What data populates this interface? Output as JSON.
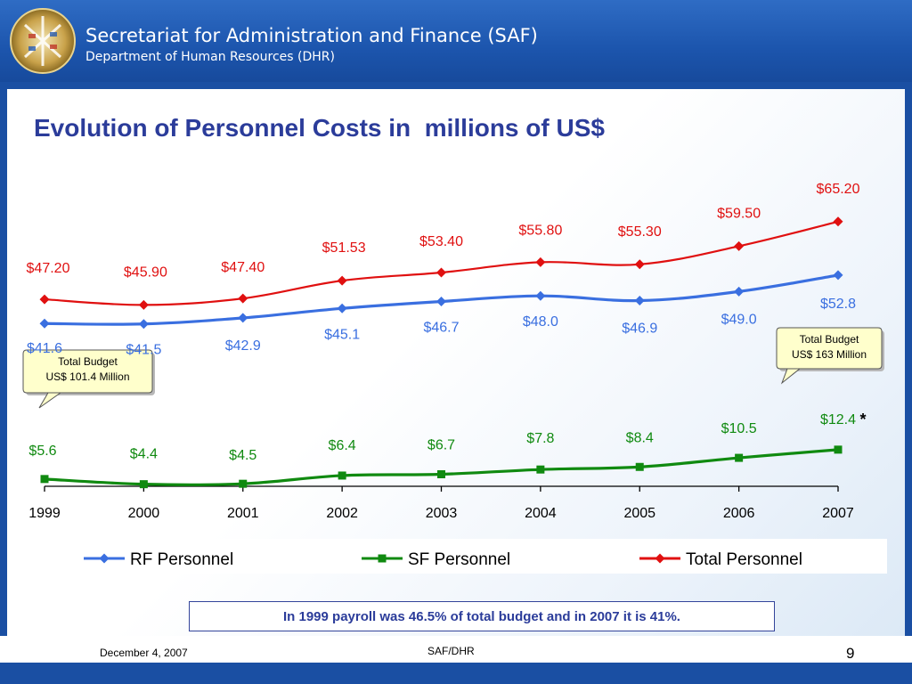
{
  "header": {
    "org_title": "Secretariat for Administration and Finance (SAF)",
    "org_subtitle": "Department of Human Resources (DHR)",
    "logo_icon": "oas-seal-logo"
  },
  "colors": {
    "rf": "#3a6fe0",
    "sf": "#108a10",
    "total": "#e01010",
    "title": "#2b3c9a"
  },
  "chart_data": {
    "type": "line",
    "title": "Evolution of Personnel Costs in  millions of US$",
    "x": [
      "1999",
      "2000",
      "2001",
      "2002",
      "2003",
      "2004",
      "2005",
      "2006",
      "2007"
    ],
    "series": [
      {
        "name": "RF Personnel",
        "values": [
          41.6,
          41.5,
          42.9,
          45.1,
          46.7,
          48.0,
          46.9,
          49.0,
          52.8
        ],
        "labels": [
          "$41.6",
          "$41.5",
          "$42.9",
          "$45.1",
          "$46.7",
          "$48.0",
          "$46.9",
          "$49.0",
          "$52.8"
        ]
      },
      {
        "name": "SF Personnel",
        "values": [
          5.6,
          4.4,
          4.5,
          6.4,
          6.7,
          7.8,
          8.4,
          10.5,
          12.4
        ],
        "labels": [
          "$5.6",
          "$4.4",
          "$4.5",
          "$6.4",
          "$6.7",
          "$7.8",
          "$8.4",
          "$10.5",
          "$12.4"
        ]
      },
      {
        "name": "Total Personnel",
        "values": [
          47.2,
          45.9,
          47.4,
          51.53,
          53.4,
          55.8,
          55.3,
          59.5,
          65.2
        ],
        "labels": [
          "$47.20",
          "$45.90",
          "$47.40",
          "$51.53",
          "$53.40",
          "$55.80",
          "$55.30",
          "$59.50",
          "$65.20"
        ]
      }
    ],
    "annotations": {
      "sf_2007_marker": "*",
      "callout_1999": [
        "Total Budget",
        "US$ 101.4 Million"
      ],
      "callout_2007": [
        "Total Budget",
        "US$ 163 Million"
      ]
    },
    "legend_position": "bottom",
    "grid": false
  },
  "note": "In 1999 payroll was 46.5% of total budget and in 2007 it is 41%.",
  "footer": {
    "date": "December 4, 2007",
    "center": "SAF/DHR",
    "page": "9"
  }
}
